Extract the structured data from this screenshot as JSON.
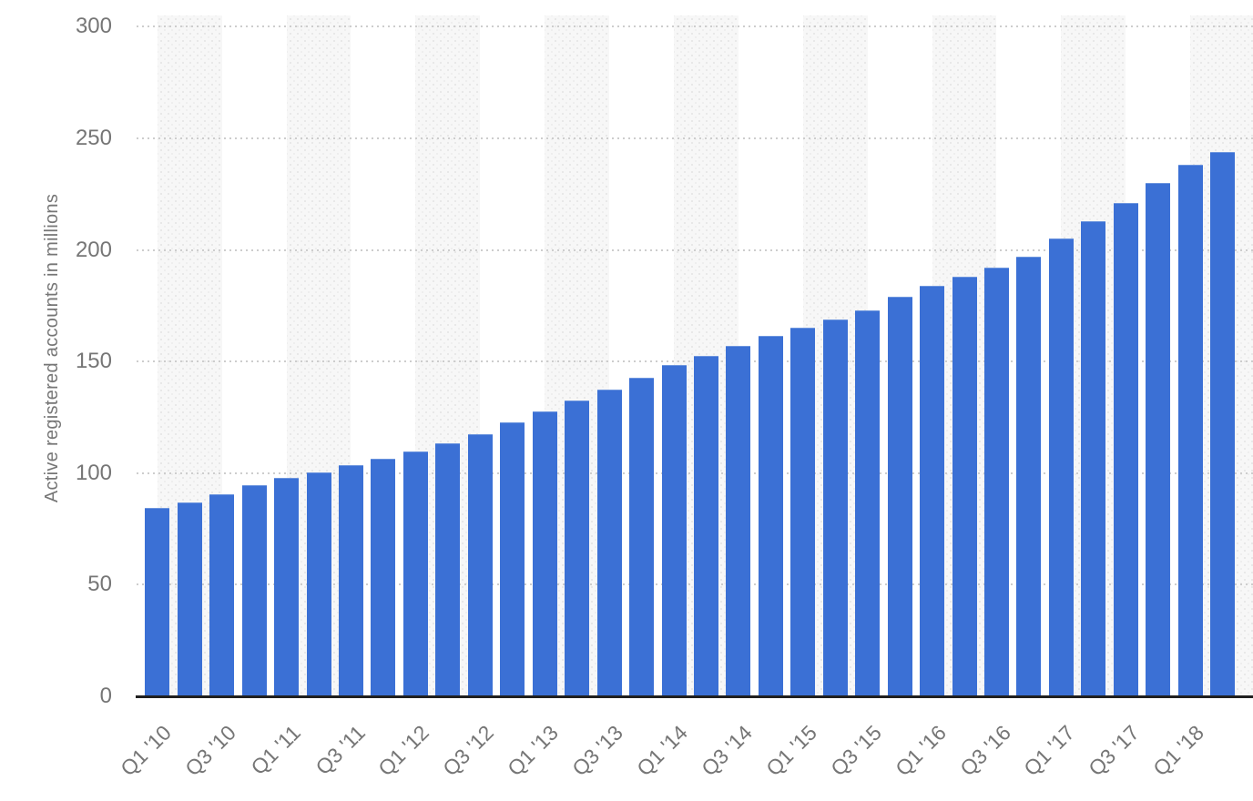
{
  "chart_data": {
    "type": "bar",
    "ylabel": "Active registered accounts in millions",
    "xlabel": "",
    "categories": [
      "Q1 '10",
      "Q2 '10",
      "Q3 '10",
      "Q4 '10",
      "Q1 '11",
      "Q2 '11",
      "Q3 '11",
      "Q4 '11",
      "Q1 '12",
      "Q2 '12",
      "Q3 '12",
      "Q4 '12",
      "Q1 '13",
      "Q2 '13",
      "Q3 '13",
      "Q4 '13",
      "Q1 '14",
      "Q2 '14",
      "Q3 '14",
      "Q4 '14",
      "Q1 '15",
      "Q2 '15",
      "Q3 '15",
      "Q4 '15",
      "Q1 '16",
      "Q2 '16",
      "Q3 '16",
      "Q4 '16",
      "Q1 '17",
      "Q2 '17",
      "Q3 '17",
      "Q4 '17",
      "Q1 '18",
      "Q2 '18"
    ],
    "values": [
      84.3,
      87,
      90.5,
      94.4,
      97.7,
      100.3,
      103.4,
      106.3,
      109.8,
      113.2,
      117.4,
      122.7,
      127.7,
      132.4,
      137.4,
      142.6,
      148.4,
      152.5,
      156.9,
      161.5,
      165.2,
      169,
      173,
      179,
      184,
      188,
      192,
      197,
      205,
      213,
      221,
      230,
      238,
      244
    ],
    "yticks": [
      0,
      50,
      100,
      150,
      200,
      250,
      300
    ],
    "ylim": [
      0,
      305
    ],
    "xtick_every": 2,
    "xtick_labels_shown": [
      "Q1 '10",
      "Q3 '10",
      "Q1 '11",
      "Q3 '11",
      "Q1 '12",
      "Q3 '12",
      "Q1 '13",
      "Q3 '13",
      "Q1 '14",
      "Q3 '14",
      "Q1 '15",
      "Q3 '15",
      "Q1 '16",
      "Q3 '16",
      "Q1 '17",
      "Q3 '17",
      "Q1 '18"
    ],
    "grid": "horizontal-dotted",
    "legend": "none",
    "bar_color": "#3b70d5",
    "background_stripe_color": "#f7f7f7",
    "gridline_color": "#cdcdcd",
    "axis_text_color": "#767676",
    "axis_line_color": "#202020"
  }
}
